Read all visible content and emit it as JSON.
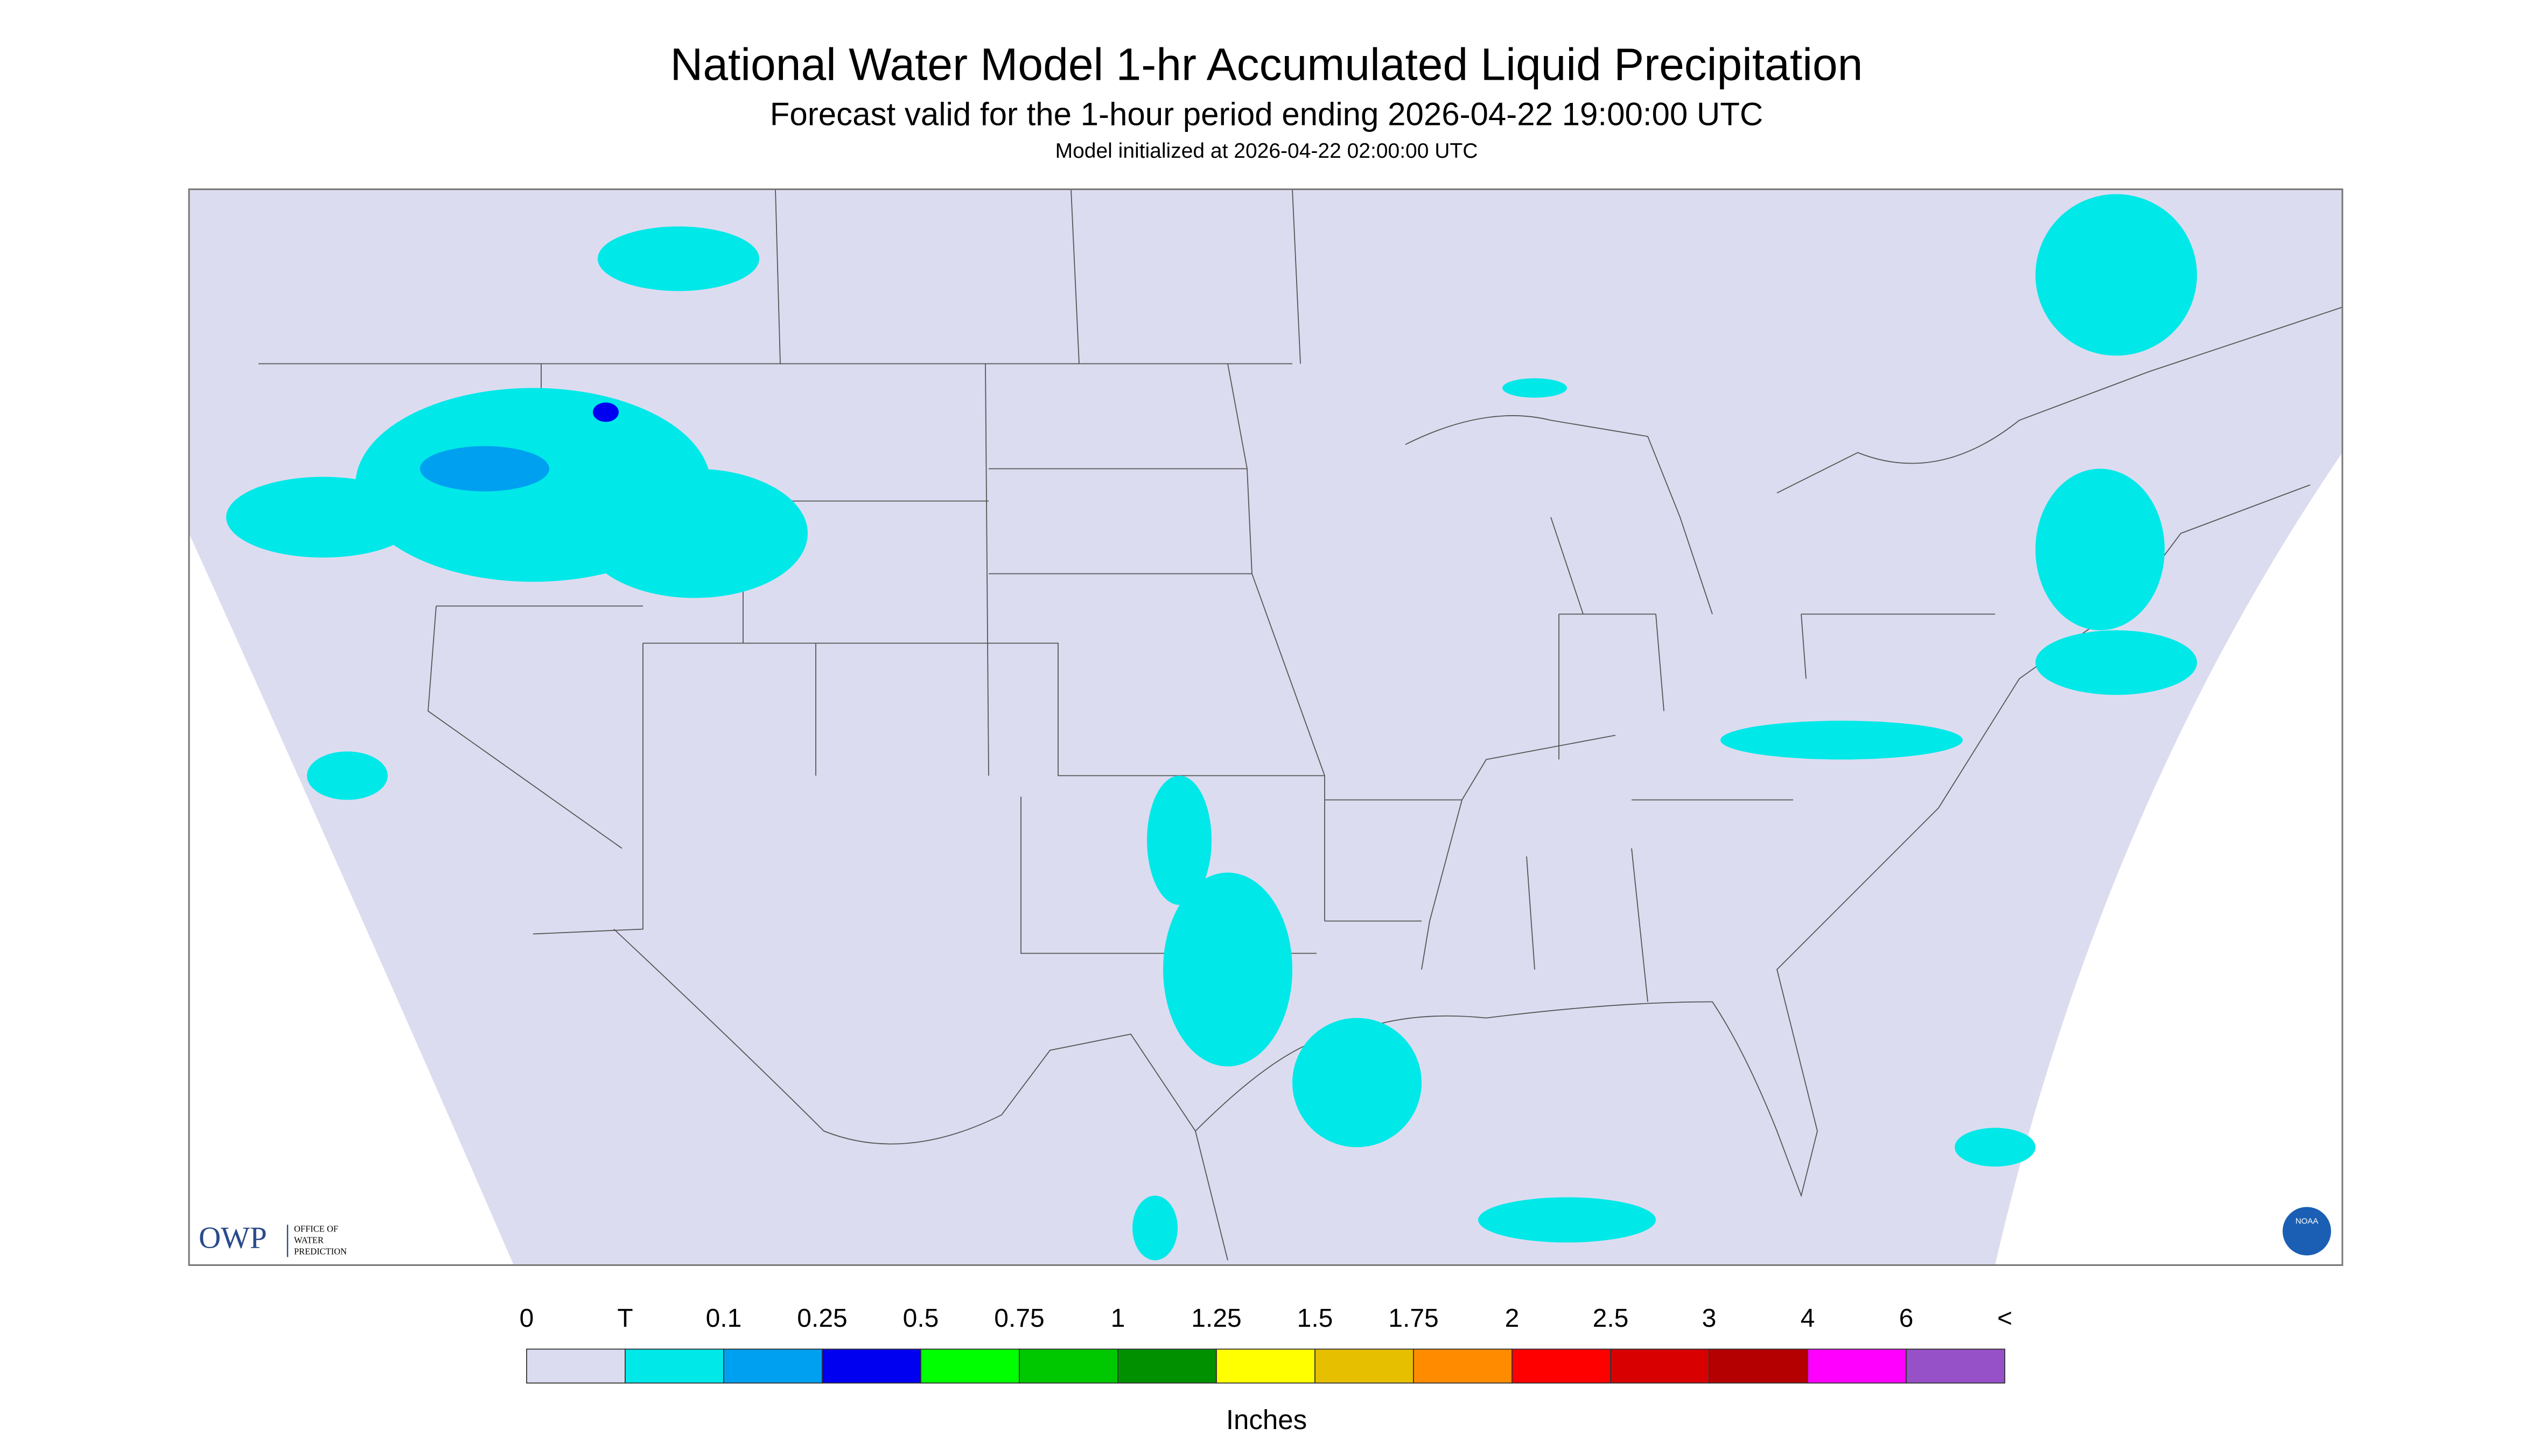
{
  "header": {
    "title": "National Water Model 1-hr Accumulated Liquid Precipitation",
    "subtitle": "Forecast valid for the 1-hour period ending 2026-04-22 19:00:00 UTC",
    "note": "Model initialized at 2026-04-22 02:00:00 UTC"
  },
  "legend": {
    "labels": [
      "0",
      "T",
      "0.1",
      "0.25",
      "0.5",
      "0.75",
      "1",
      "1.25",
      "1.5",
      "1.75",
      "2",
      "2.5",
      "3",
      "4",
      "6",
      "<"
    ],
    "colors": [
      "#dcdcf0",
      "#00e8e8",
      "#00a0f0",
      "#0000f0",
      "#00ff00",
      "#00c800",
      "#009000",
      "#ffff00",
      "#e6c000",
      "#ff8c00",
      "#ff0000",
      "#d80000",
      "#b40000",
      "#ff00ff",
      "#9650c8"
    ],
    "unit": "Inches"
  },
  "logos": {
    "owp": {
      "name": "OWP",
      "lines": [
        "OFFICE OF",
        "WATER",
        "PREDICTION"
      ]
    },
    "noaa": "NOAA"
  }
}
